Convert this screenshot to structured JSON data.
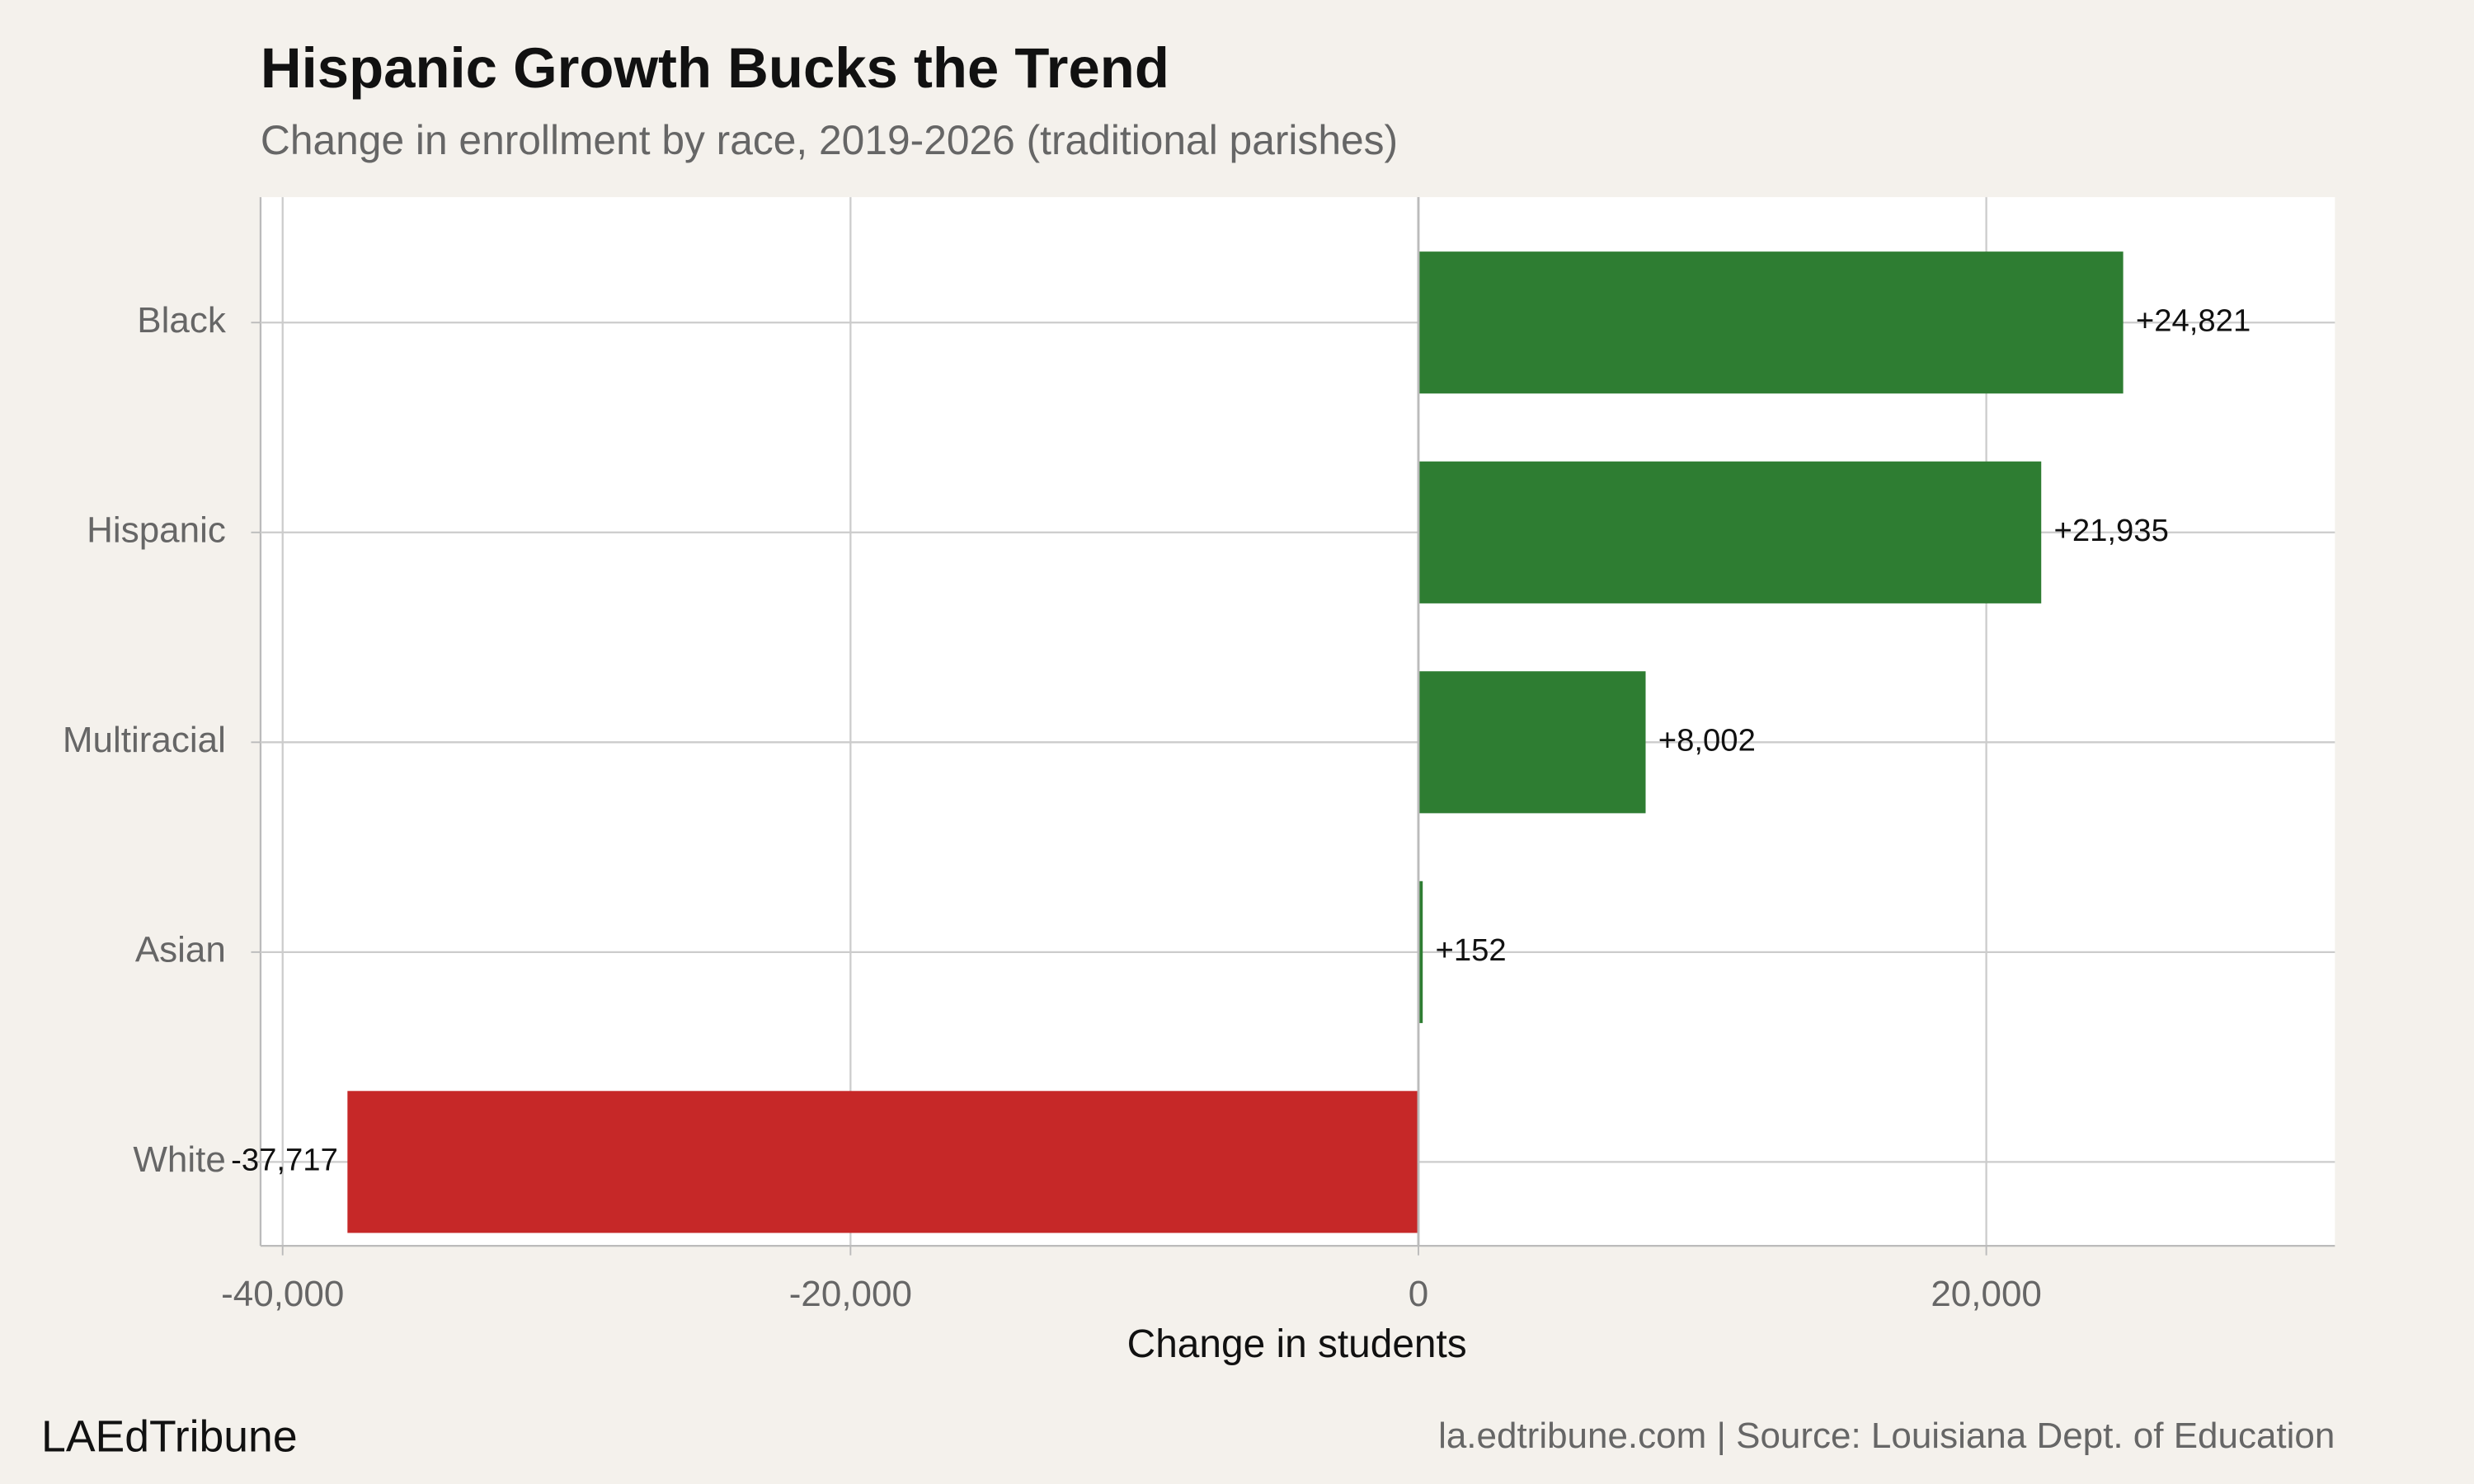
{
  "chart_data": {
    "type": "barh",
    "title": "Hispanic Growth Bucks the Trend",
    "subtitle": "Change in enrollment by race, 2019-2026 (traditional parishes)",
    "x_label": "Change in students",
    "categories": [
      "Black",
      "Hispanic",
      "Multiracial",
      "Asian",
      "White"
    ],
    "values": [
      24821,
      21935,
      8002,
      152,
      -37717
    ],
    "value_labels": [
      "+24,821",
      "+21,935",
      "+8,002",
      "+152",
      "-37,717"
    ],
    "colors": [
      "#2e7d32",
      "#2e7d32",
      "#2e7d32",
      "#2e7d32",
      "#c62828"
    ],
    "xlim": [
      -40778,
      32278
    ],
    "xticks": [
      {
        "value": -40000,
        "label": "-40,000"
      },
      {
        "value": -20000,
        "label": "-20,000"
      },
      0,
      {
        "value": 20000,
        "label": "20,000"
      }
    ],
    "grid": true,
    "brand": "LAEdTribune",
    "source": "la.edtribune.com | Source: Louisiana Dept. of Education"
  }
}
